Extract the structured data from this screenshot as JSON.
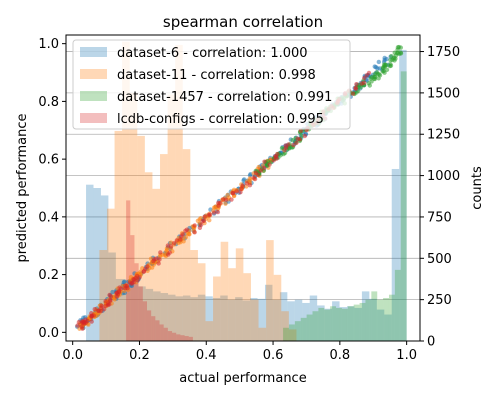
{
  "chart_data": {
    "type": "scatter",
    "title": "spearman correlation",
    "xlabel": "actual performance",
    "ylabel": "predicted performance",
    "y2label": "counts",
    "xlim": [
      -0.02,
      1.04
    ],
    "ylim": [
      -0.03,
      1.03
    ],
    "y2lim": [
      0,
      1850
    ],
    "xticks": [
      "0.0",
      "0.2",
      "0.4",
      "0.6",
      "0.8",
      "1.0"
    ],
    "yticks": [
      "0.0",
      "0.2",
      "0.4",
      "0.6",
      "0.8",
      "1.0"
    ],
    "y2ticks": [
      "0",
      "250",
      "500",
      "750",
      "1000",
      "1250",
      "1500",
      "1750"
    ],
    "grid": "right-axis horizontal",
    "legend_position": "top-left",
    "series": [
      {
        "name": "dataset-6 - correlation: 1.000",
        "color": "#1f77b4",
        "points_x": [
          0.02,
          0.05,
          0.1,
          0.15,
          0.2,
          0.3,
          0.4,
          0.5,
          0.55,
          0.6,
          0.65,
          0.7,
          0.75,
          0.8,
          0.85,
          0.9,
          0.95
        ],
        "points_y": [
          0.02,
          0.05,
          0.1,
          0.15,
          0.2,
          0.3,
          0.4,
          0.5,
          0.55,
          0.6,
          0.65,
          0.7,
          0.75,
          0.8,
          0.85,
          0.9,
          0.95
        ],
        "hist_edges": [
          0.04,
          1.0
        ],
        "hist_counts": [
          945,
          925,
          880,
          535,
          375,
          370,
          350,
          330,
          315,
          300,
          290,
          280,
          270,
          275,
          265,
          280,
          270,
          260,
          275,
          250,
          265,
          245,
          260,
          255,
          340,
          250,
          295,
          240,
          250,
          230,
          275,
          215,
          195,
          240,
          205,
          210,
          200,
          300,
          255,
          190,
          160,
          1040,
          1760
        ]
      },
      {
        "name": "dataset-11 - correlation: 0.998",
        "color": "#ff7f0e",
        "points_x": [
          0.02,
          0.05,
          0.08,
          0.12,
          0.16,
          0.2,
          0.25,
          0.3,
          0.35,
          0.4,
          0.45,
          0.5,
          0.55,
          0.6
        ],
        "points_y": [
          0.02,
          0.05,
          0.08,
          0.12,
          0.16,
          0.2,
          0.25,
          0.3,
          0.35,
          0.4,
          0.45,
          0.5,
          0.55,
          0.6
        ],
        "hist_edges": [
          0.08,
          0.67
        ],
        "hist_counts": [
          550,
          800,
          1270,
          1810,
          1500,
          1240,
          1020,
          920,
          1130,
          1490,
          1790,
          1160,
          550,
          470,
          120,
          390,
          600,
          440,
          560,
          410,
          250,
          80,
          610,
          400,
          180,
          70
        ]
      },
      {
        "name": "dataset-1457 - correlation: 0.991",
        "color": "#2ca02c",
        "points_x": [
          0.55,
          0.6,
          0.65,
          0.7,
          0.75,
          0.8,
          0.85,
          0.9,
          0.93,
          0.96,
          0.99
        ],
        "points_y": [
          0.54,
          0.6,
          0.64,
          0.7,
          0.75,
          0.8,
          0.84,
          0.88,
          0.91,
          0.95,
          0.99
        ],
        "hist_edges": [
          0.63,
          1.0
        ],
        "hist_counts": [
          80,
          100,
          120,
          140,
          160,
          180,
          200,
          190,
          210,
          200,
          195,
          210,
          220,
          230,
          250,
          300,
          250,
          260,
          280,
          430,
          1630
        ]
      },
      {
        "name": "lcdb-configs - correlation: 0.995",
        "color": "#d62728",
        "points_x": [
          0.02,
          0.05,
          0.1,
          0.15,
          0.2,
          0.3,
          0.4,
          0.5,
          0.6,
          0.7,
          0.8,
          0.9
        ],
        "points_y": [
          0.02,
          0.05,
          0.1,
          0.15,
          0.2,
          0.3,
          0.4,
          0.5,
          0.6,
          0.7,
          0.8,
          0.9
        ],
        "hist_edges": [
          0.16,
          0.36
        ],
        "hist_counts": [
          850,
          640,
          470,
          330,
          240,
          185,
          150,
          125,
          100,
          80,
          60,
          50,
          40,
          35,
          30,
          25
        ]
      }
    ]
  }
}
